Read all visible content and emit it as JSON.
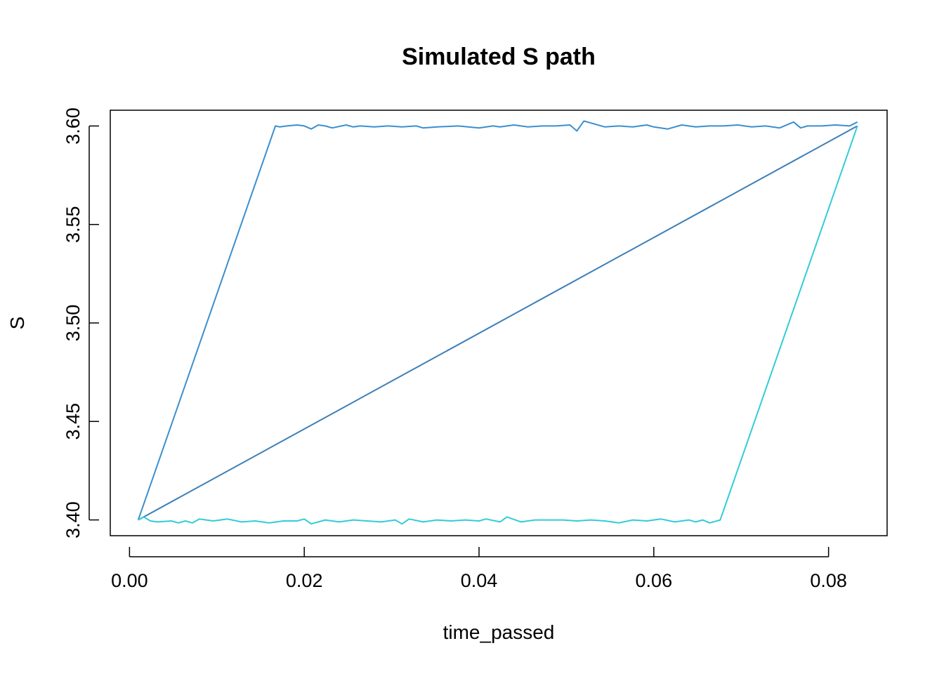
{
  "chart_data": {
    "type": "line",
    "title": "Simulated S path",
    "xlabel": "time_passed",
    "ylabel": "S",
    "xlim": [
      -0.0022,
      0.0867
    ],
    "ylim": [
      3.392,
      3.608
    ],
    "x_ticks": [
      "0.00",
      "0.02",
      "0.04",
      "0.06",
      "0.08"
    ],
    "y_ticks": [
      "3.40",
      "3.45",
      "3.50",
      "3.55",
      "3.60"
    ],
    "grid": false,
    "legend": "none",
    "series": [
      {
        "color": "#3a8fd0",
        "x": [
          0.001,
          0.0167,
          0.0172,
          0.018,
          0.0192,
          0.02,
          0.0208,
          0.0216,
          0.0224,
          0.0232,
          0.0248,
          0.0256,
          0.0264,
          0.028,
          0.0296,
          0.0312,
          0.0328,
          0.0336,
          0.0352,
          0.0376,
          0.04,
          0.0416,
          0.0424,
          0.044,
          0.0456,
          0.0472,
          0.0488,
          0.0504,
          0.0512,
          0.052,
          0.0528,
          0.0544,
          0.056,
          0.0576,
          0.0592,
          0.06,
          0.0616,
          0.0632,
          0.0648,
          0.0664,
          0.068,
          0.0696,
          0.0712,
          0.0728,
          0.0744,
          0.076,
          0.0768,
          0.0776,
          0.0792,
          0.0808,
          0.0824,
          0.0833
        ],
        "y": [
          3.4,
          3.6,
          3.5995,
          3.6,
          3.6005,
          3.6,
          3.5985,
          3.6005,
          3.6,
          3.599,
          3.6005,
          3.5995,
          3.6,
          3.5995,
          3.6,
          3.5995,
          3.6,
          3.599,
          3.5995,
          3.6,
          3.599,
          3.6,
          3.5995,
          3.6005,
          3.5995,
          3.6,
          3.6,
          3.6005,
          3.5975,
          3.6025,
          3.6015,
          3.5995,
          3.6,
          3.5995,
          3.6005,
          3.5995,
          3.5985,
          3.6005,
          3.5995,
          3.6,
          3.6,
          3.6005,
          3.5995,
          3.6,
          3.599,
          3.602,
          3.599,
          3.6,
          3.6,
          3.6005,
          3.6,
          3.602
        ]
      },
      {
        "color": "#3c7fb8",
        "x": [
          0.001,
          0.0833
        ],
        "y": [
          3.4,
          3.6
        ]
      },
      {
        "color": "#32ccd8",
        "x": [
          0.001,
          0.0016,
          0.0024,
          0.0032,
          0.0048,
          0.0056,
          0.0064,
          0.0072,
          0.008,
          0.0096,
          0.0112,
          0.0128,
          0.0144,
          0.016,
          0.0176,
          0.0192,
          0.02,
          0.0208,
          0.0224,
          0.024,
          0.0256,
          0.0272,
          0.0288,
          0.0304,
          0.0312,
          0.032,
          0.0336,
          0.0352,
          0.0368,
          0.0384,
          0.04,
          0.0408,
          0.0424,
          0.0432,
          0.0448,
          0.0464,
          0.048,
          0.0496,
          0.0512,
          0.0528,
          0.0544,
          0.056,
          0.0576,
          0.0592,
          0.0608,
          0.0624,
          0.064,
          0.0648,
          0.0656,
          0.0664,
          0.0676,
          0.0833
        ],
        "y": [
          3.4,
          3.4015,
          3.3995,
          3.399,
          3.3995,
          3.3985,
          3.3995,
          3.3985,
          3.4005,
          3.3995,
          3.4005,
          3.399,
          3.3995,
          3.3985,
          3.3995,
          3.3995,
          3.4005,
          3.398,
          3.4,
          3.399,
          3.4,
          3.3995,
          3.399,
          3.4,
          3.398,
          3.4005,
          3.399,
          3.4,
          3.3995,
          3.4,
          3.3995,
          3.4005,
          3.399,
          3.4015,
          3.399,
          3.4,
          3.4,
          3.4,
          3.3995,
          3.4,
          3.3995,
          3.3985,
          3.4,
          3.3995,
          3.4005,
          3.399,
          3.4,
          3.399,
          3.4,
          3.3985,
          3.4,
          3.6
        ]
      }
    ]
  }
}
